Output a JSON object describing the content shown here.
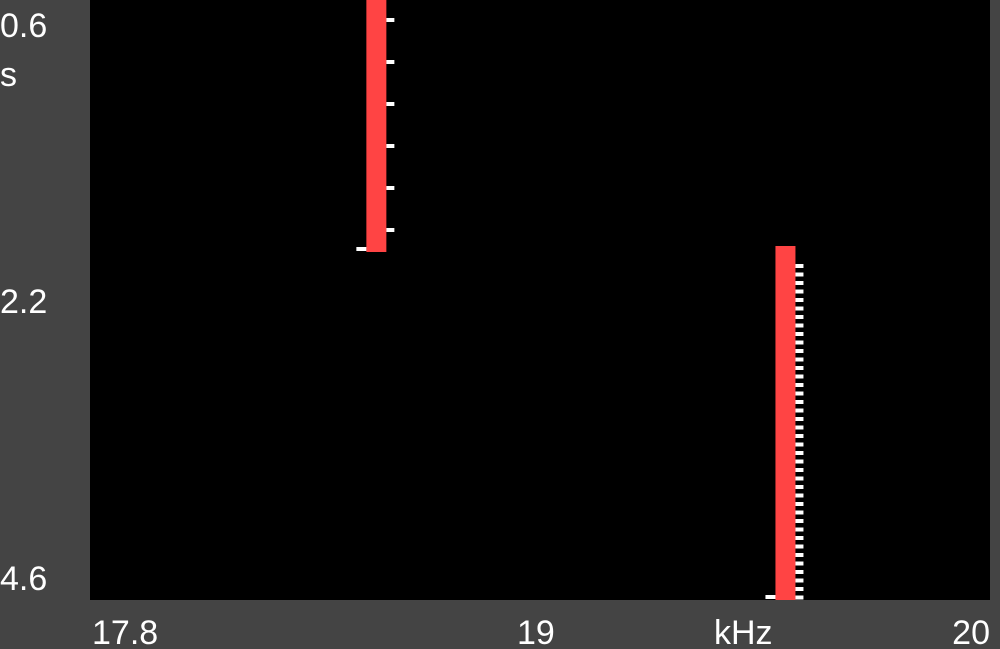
{
  "chart_data": {
    "type": "heatmap",
    "title": "",
    "xlabel": "kHz",
    "ylabel": "s",
    "xlim": [
      17.8,
      20
    ],
    "ylim": [
      0.6,
      4.6
    ],
    "x_tick_labels": [
      {
        "value": 17.8,
        "label": "17.8"
      },
      {
        "value": 19,
        "label": "19"
      },
      {
        "value": 20,
        "label": "20"
      }
    ],
    "y_tick_labels": [
      {
        "value": 0.6,
        "label": "0.6"
      },
      {
        "value": 2.2,
        "label": "2.2"
      },
      {
        "value": 4.6,
        "label": "4.6"
      }
    ],
    "series": [
      {
        "frequency_khz": 18.5,
        "time_start_s": 0.6,
        "time_end_s": 2.28,
        "color": "#ff4444"
      },
      {
        "frequency_khz": 19.5,
        "time_start_s": 2.24,
        "time_end_s": 4.6,
        "color": "#ff4444"
      }
    ],
    "colors": {
      "plot_background": "#000000",
      "frame": "#444444",
      "signal": "#ff4444",
      "weak_signal": "#ffffff",
      "text": "#ffffff"
    },
    "grid": false
  }
}
